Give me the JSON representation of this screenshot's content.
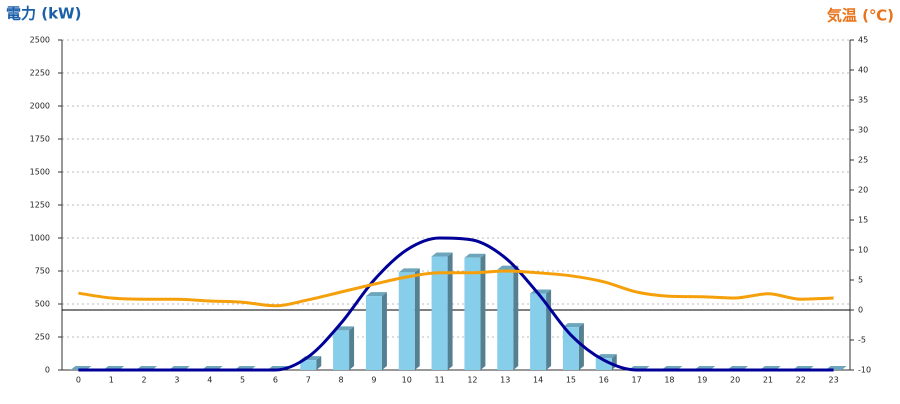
{
  "chart_data": {
    "type": "bar",
    "title": "電力 (kW)",
    "y2_title": "気温 (℃)",
    "categories": [
      "0",
      "1",
      "2",
      "3",
      "4",
      "5",
      "6",
      "7",
      "8",
      "9",
      "10",
      "11",
      "12",
      "13",
      "14",
      "15",
      "16",
      "17",
      "18",
      "19",
      "20",
      "21",
      "22",
      "23"
    ],
    "series": [
      {
        "type": "bar",
        "color": "#87ceeb",
        "values": [
          0,
          0,
          0,
          0,
          0,
          0,
          0,
          75,
          300,
          560,
          740,
          860,
          850,
          760,
          580,
          325,
          90,
          0,
          0,
          0,
          0,
          0,
          0,
          0
        ]
      },
      {
        "type": "line",
        "color": "#000099",
        "values": [
          0,
          0,
          0,
          0,
          0,
          0,
          0,
          100,
          355,
          680,
          910,
          1000,
          985,
          850,
          580,
          265,
          75,
          0,
          0,
          0,
          0,
          0,
          0,
          0
        ]
      },
      {
        "type": "line",
        "axis": "y2",
        "color": "#f5a00a",
        "values": [
          2.8,
          2.0,
          1.8,
          1.8,
          1.5,
          1.3,
          0.7,
          1.7,
          3.0,
          4.3,
          5.5,
          6.2,
          6.2,
          6.5,
          6.2,
          5.7,
          4.7,
          3.0,
          2.3,
          2.2,
          2.0,
          2.7,
          1.8,
          2.0
        ]
      }
    ],
    "ylim": [
      0,
      2500
    ],
    "yticks": [
      0,
      250,
      500,
      750,
      1000,
      1250,
      1500,
      1750,
      2000,
      2250,
      2500
    ],
    "y2lim": [
      -10,
      45
    ],
    "y2ticks": [
      -10,
      -5,
      0,
      5,
      10,
      15,
      20,
      25,
      30,
      35,
      40,
      45
    ],
    "y2_baseline": 0,
    "grid": true
  }
}
